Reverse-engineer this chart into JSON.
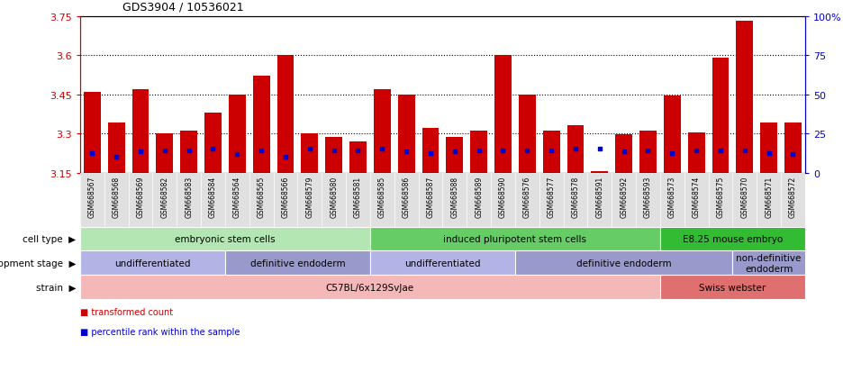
{
  "title": "GDS3904 / 10536021",
  "samples": [
    "GSM668567",
    "GSM668568",
    "GSM668569",
    "GSM668582",
    "GSM668583",
    "GSM668584",
    "GSM668564",
    "GSM668565",
    "GSM668566",
    "GSM668579",
    "GSM668580",
    "GSM668581",
    "GSM668585",
    "GSM668586",
    "GSM668587",
    "GSM668588",
    "GSM668589",
    "GSM668590",
    "GSM668576",
    "GSM668577",
    "GSM668578",
    "GSM668591",
    "GSM668592",
    "GSM668593",
    "GSM668573",
    "GSM668574",
    "GSM668575",
    "GSM668570",
    "GSM668571",
    "GSM668572"
  ],
  "bar_values": [
    3.46,
    3.34,
    3.47,
    3.3,
    3.31,
    3.38,
    3.45,
    3.52,
    3.6,
    3.3,
    3.285,
    3.27,
    3.47,
    3.45,
    3.32,
    3.285,
    3.31,
    3.6,
    3.45,
    3.31,
    3.33,
    3.155,
    3.295,
    3.31,
    3.445,
    3.305,
    3.59,
    3.73,
    3.34,
    3.34
  ],
  "dot_values": [
    3.225,
    3.21,
    3.23,
    3.235,
    3.235,
    3.24,
    3.22,
    3.235,
    3.21,
    3.24,
    3.235,
    3.235,
    3.24,
    3.23,
    3.225,
    3.23,
    3.235,
    3.235,
    3.235,
    3.235,
    3.24,
    3.24,
    3.23,
    3.235,
    3.225,
    3.235,
    3.235,
    3.235,
    3.225,
    3.22
  ],
  "ymin": 3.15,
  "ymax": 3.75,
  "yticks": [
    3.15,
    3.3,
    3.45,
    3.6,
    3.75
  ],
  "ytick_labels": [
    "3.15",
    "3.3",
    "3.45",
    "3.6",
    "3.75"
  ],
  "right_yticks": [
    0,
    25,
    50,
    75,
    100
  ],
  "right_ytick_labels": [
    "0",
    "25",
    "50",
    "75",
    "100%"
  ],
  "bar_color": "#cc0000",
  "dot_color": "#0000cc",
  "dotted_line_y": [
    3.3,
    3.45,
    3.6
  ],
  "cell_type_groups": [
    {
      "label": "embryonic stem cells",
      "start": 0,
      "end": 11,
      "color": "#b3e6b3"
    },
    {
      "label": "induced pluripotent stem cells",
      "start": 12,
      "end": 23,
      "color": "#66cc66"
    },
    {
      "label": "E8.25 mouse embryo",
      "start": 24,
      "end": 29,
      "color": "#33bb33"
    }
  ],
  "dev_stage_groups": [
    {
      "label": "undifferentiated",
      "start": 0,
      "end": 5,
      "color": "#b3b3e6"
    },
    {
      "label": "definitive endoderm",
      "start": 6,
      "end": 11,
      "color": "#9999cc"
    },
    {
      "label": "undifferentiated",
      "start": 12,
      "end": 17,
      "color": "#b3b3e6"
    },
    {
      "label": "definitive endoderm",
      "start": 18,
      "end": 26,
      "color": "#9999cc"
    },
    {
      "label": "non-definitive\nendoderm",
      "start": 27,
      "end": 29,
      "color": "#9999cc"
    }
  ],
  "strain_groups": [
    {
      "label": "C57BL/6x129SvJae",
      "start": 0,
      "end": 23,
      "color": "#f4b8b8"
    },
    {
      "label": "Swiss webster",
      "start": 24,
      "end": 29,
      "color": "#e07070"
    }
  ],
  "legend_items": [
    {
      "label": "transformed count",
      "color": "#cc0000"
    },
    {
      "label": "percentile rank within the sample",
      "color": "#0000cc"
    }
  ],
  "row_labels": [
    "cell type",
    "development stage",
    "strain"
  ],
  "left_axis_color": "#cc0000",
  "right_axis_color": "#0000cc"
}
